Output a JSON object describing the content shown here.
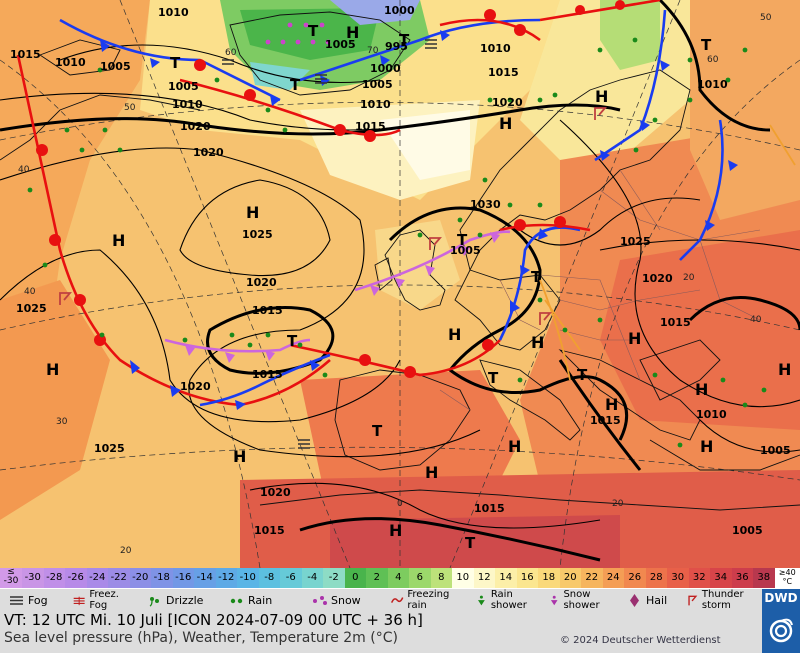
{
  "map": {
    "pressure_labels": [
      "1010",
      "1000",
      "1005",
      "995",
      "1010",
      "1015",
      "1010",
      "1005",
      "1005",
      "1010",
      "1015",
      "1000",
      "1005",
      "1010",
      "1015",
      "1020",
      "1020",
      "1020",
      "1025",
      "1030",
      "1005",
      "1025",
      "1020",
      "1015",
      "1015",
      "1025",
      "1020",
      "1015",
      "1020",
      "1025",
      "1020",
      "1015",
      "1015",
      "1010",
      "1015",
      "1005",
      "1005",
      "1010"
    ],
    "highs": [
      "H",
      "H",
      "H",
      "H",
      "H",
      "H",
      "H",
      "H",
      "H",
      "H",
      "H",
      "H",
      "H",
      "H",
      "H",
      "H",
      "H"
    ],
    "lows": [
      "T",
      "T",
      "T",
      "T",
      "T",
      "T",
      "T",
      "T",
      "T",
      "T",
      "T",
      "T"
    ],
    "temp_labels": [
      "60",
      "50",
      "40",
      "40",
      "30",
      "20",
      "20",
      "0",
      "60",
      "70",
      "40",
      "20",
      "50"
    ]
  },
  "temperature_scale": {
    "unit_top": "≤",
    "unit_low": "-30",
    "values": [
      "-30",
      "-28",
      "-26",
      "-24",
      "-22",
      "-20",
      "-18",
      "-16",
      "-14",
      "-12",
      "-10",
      "-8",
      "-6",
      "-4",
      "-2",
      "0",
      "2",
      "4",
      "6",
      "8",
      "10",
      "12",
      "14",
      "16",
      "18",
      "20",
      "22",
      "24",
      "26",
      "28",
      "30",
      "32",
      "34",
      "36",
      "38"
    ],
    "colors": [
      "#c995e6",
      "#c08fe8",
      "#b78ae8",
      "#a98ae8",
      "#9c8ce6",
      "#8c8fe6",
      "#7f93e6",
      "#7298e6",
      "#67a0e6",
      "#5eaae6",
      "#5ab5e6",
      "#5cc0e0",
      "#66cad8",
      "#78d4cf",
      "#8ddcc5",
      "#49b44c",
      "#5fc055",
      "#7dcc5f",
      "#9cd86b",
      "#bde27a",
      "#ffffe6",
      "#fdf7c8",
      "#fcefa8",
      "#fbe68f",
      "#fad97a",
      "#f8c96b",
      "#f6b55e",
      "#f49e55",
      "#f1884f",
      "#ed734b",
      "#e86049",
      "#e05049",
      "#d74449",
      "#cd3d4c",
      "#b8384e"
    ],
    "max_label": "≥40",
    "unit": "°C"
  },
  "legend": {
    "items": [
      {
        "label": "Fog",
        "icon": "fog-icon"
      },
      {
        "label": "Freez. Fog",
        "icon": "freezing-fog-icon"
      },
      {
        "label": "Drizzle",
        "icon": "drizzle-icon"
      },
      {
        "label": "Rain",
        "icon": "rain-icon"
      },
      {
        "label": "Snow",
        "icon": "snow-icon"
      },
      {
        "label": "Freezing rain",
        "icon": "freezing-rain-icon"
      },
      {
        "label": "Rain shower",
        "icon": "rain-shower-icon"
      },
      {
        "label": "Snow shower",
        "icon": "snow-shower-icon"
      },
      {
        "label": "Hail",
        "icon": "hail-icon"
      },
      {
        "label": "Thunder storm",
        "icon": "thunderstorm-icon"
      }
    ]
  },
  "info": {
    "valid_time": "VT: 12 UTC Mi.   10 Juli [ICON 2024-07-09  00 UTC + 36 h]",
    "description": "Sea level pressure (hPa), Weather, Temperature 2m (°C)",
    "copyright": "© 2024 Deutscher Wetterdienst"
  },
  "logo": {
    "text": "DWD"
  }
}
